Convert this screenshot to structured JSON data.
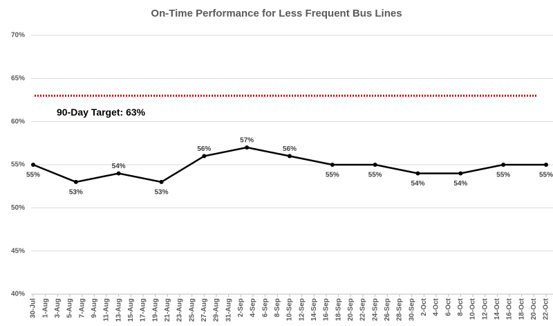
{
  "chart_data": {
    "type": "line",
    "title": "On-Time Performance for Less Frequent Bus Lines",
    "xticks": [
      "30-Jul",
      "1-Aug",
      "3-Aug",
      "5-Aug",
      "7-Aug",
      "9-Aug",
      "11-Aug",
      "13-Aug",
      "15-Aug",
      "17-Aug",
      "19-Aug",
      "21-Aug",
      "23-Aug",
      "25-Aug",
      "27-Aug",
      "29-Aug",
      "31-Aug",
      "2-Sep",
      "4-Sep",
      "6-Sep",
      "8-Sep",
      "10-Sep",
      "12-Sep",
      "14-Sep",
      "16-Sep",
      "18-Sep",
      "20-Sep",
      "22-Sep",
      "24-Sep",
      "26-Sep",
      "28-Sep",
      "30-Sep",
      "2-Oct",
      "4-Oct",
      "6-Oct",
      "8-Oct",
      "10-Oct",
      "12-Oct",
      "14-Oct",
      "16-Oct",
      "18-Oct",
      "20-Oct",
      "22-Oct"
    ],
    "x": [
      "30-Jul",
      "6-Aug",
      "13-Aug",
      "20-Aug",
      "27-Aug",
      "3-Sep",
      "10-Sep",
      "17-Sep",
      "24-Sep",
      "1-Oct",
      "8-Oct",
      "15-Oct",
      "22-Oct"
    ],
    "series": [
      {
        "name": "On-Time Performance",
        "color": "#000000",
        "values": [
          55,
          53,
          54,
          53,
          56,
          57,
          56,
          55,
          55,
          54,
          54,
          55,
          55
        ],
        "value_labels": [
          "55%",
          "53%",
          "54%",
          "53%",
          "56%",
          "57%",
          "56%",
          "55%",
          "55%",
          "54%",
          "54%",
          "55%",
          "55%"
        ]
      }
    ],
    "target": {
      "value": 63,
      "label": "90-Day Target: 63%",
      "color": "#c00000"
    },
    "ylim": [
      40,
      70
    ],
    "yticks": [
      {
        "value": 40,
        "label": "40%"
      },
      {
        "value": 45,
        "label": "45%"
      },
      {
        "value": 50,
        "label": "50%"
      },
      {
        "value": 55,
        "label": "55%"
      },
      {
        "value": 60,
        "label": "60%"
      },
      {
        "value": 65,
        "label": "65%"
      },
      {
        "value": 70,
        "label": "70%"
      }
    ],
    "grid": true
  }
}
